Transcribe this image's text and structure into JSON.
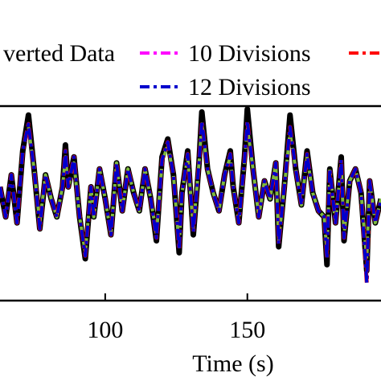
{
  "chart_data": {
    "type": "line",
    "xlabel": "Time (s)",
    "ylabel": "",
    "title": "",
    "xlim": [
      63,
      197
    ],
    "ylim": [
      -1.6,
      1.65
    ],
    "grid": false,
    "legend_placement": "top",
    "x_ticks": [
      {
        "value": 100,
        "label": "100"
      },
      {
        "value": 150,
        "label": "150"
      }
    ],
    "legend": [
      {
        "label": "verted Data",
        "color": "#000000",
        "dash": "solid"
      },
      {
        "label": "10 Divisions",
        "color": "#ff00ff",
        "dash": "dashdot"
      },
      {
        "label": "",
        "color": "#ff0000",
        "dash": "dashdot"
      },
      {
        "label": "12 Divisions",
        "color": "#0000cc",
        "dash": "dashdot"
      }
    ],
    "series": [
      {
        "color": "#000000",
        "style": "solid",
        "points": [
          [
            63,
            0.3
          ],
          [
            65,
            -0.2
          ],
          [
            67,
            0.5
          ],
          [
            69,
            -0.3
          ],
          [
            71,
            0.9
          ],
          [
            73,
            1.5
          ],
          [
            75,
            0.6
          ],
          [
            77,
            -0.4
          ],
          [
            79,
            0.5
          ],
          [
            81,
            0.1
          ],
          [
            83,
            -0.2
          ],
          [
            85,
            0.3
          ],
          [
            86,
            1.0
          ],
          [
            87,
            0.3
          ],
          [
            89,
            0.8
          ],
          [
            91,
            -0.2
          ],
          [
            93,
            -0.9
          ],
          [
            95,
            0.3
          ],
          [
            96,
            -0.2
          ],
          [
            98,
            0.6
          ],
          [
            100,
            0.1
          ],
          [
            102,
            -0.5
          ],
          [
            104,
            0.7
          ],
          [
            106,
            -0.1
          ],
          [
            108,
            0.6
          ],
          [
            110,
            0.2
          ],
          [
            112,
            -0.1
          ],
          [
            114,
            0.6
          ],
          [
            116,
            0.1
          ],
          [
            118,
            -0.6
          ],
          [
            120,
            0.8
          ],
          [
            122,
            1.1
          ],
          [
            124,
            0.5
          ],
          [
            126,
            -0.8
          ],
          [
            127,
            0.2
          ],
          [
            129,
            0.9
          ],
          [
            131,
            -0.5
          ],
          [
            133,
            0.7
          ],
          [
            134,
            1.55
          ],
          [
            136,
            0.6
          ],
          [
            138,
            0.2
          ],
          [
            140,
            -0.1
          ],
          [
            142,
            0.5
          ],
          [
            144,
            0.9
          ],
          [
            145,
            0.3
          ],
          [
            147,
            -0.3
          ],
          [
            149,
            0.8
          ],
          [
            150,
            1.6
          ],
          [
            152,
            0.6
          ],
          [
            154,
            -0.2
          ],
          [
            156,
            0.4
          ],
          [
            158,
            0.1
          ],
          [
            160,
            0.7
          ],
          [
            161,
            -0.7
          ],
          [
            163,
            0.3
          ],
          [
            165,
            1.5
          ],
          [
            167,
            0.6
          ],
          [
            169,
            0.0
          ],
          [
            171,
            0.9
          ],
          [
            173,
            0.2
          ],
          [
            175,
            -0.1
          ],
          [
            177,
            -0.2
          ],
          [
            178,
            -1.0
          ],
          [
            179,
            0.6
          ],
          [
            181,
            -0.3
          ],
          [
            183,
            0.8
          ],
          [
            184,
            -0.6
          ],
          [
            186,
            0.4
          ],
          [
            188,
            0.6
          ],
          [
            190,
            0.2
          ],
          [
            192,
            -1.1
          ],
          [
            193,
            0.4
          ],
          [
            195,
            -0.3
          ],
          [
            197,
            0.1
          ]
        ]
      },
      {
        "color": "#7dba3e",
        "style": "dashdot",
        "points": [
          [
            63,
            0.3
          ],
          [
            65,
            -0.2
          ],
          [
            67,
            0.5
          ],
          [
            69,
            -0.3
          ],
          [
            71,
            0.9
          ],
          [
            73,
            1.3
          ],
          [
            75,
            0.6
          ],
          [
            77,
            -0.3
          ],
          [
            79,
            0.5
          ],
          [
            81,
            0.1
          ],
          [
            83,
            -0.2
          ],
          [
            85,
            0.3
          ],
          [
            86,
            0.8
          ],
          [
            87,
            0.3
          ],
          [
            89,
            0.7
          ],
          [
            91,
            -0.2
          ],
          [
            93,
            -0.8
          ],
          [
            95,
            0.3
          ],
          [
            96,
            -0.2
          ],
          [
            98,
            0.6
          ],
          [
            100,
            0.1
          ],
          [
            102,
            -0.5
          ],
          [
            104,
            0.7
          ],
          [
            106,
            -0.1
          ],
          [
            108,
            0.6
          ],
          [
            110,
            0.2
          ],
          [
            112,
            -0.1
          ],
          [
            114,
            0.6
          ],
          [
            116,
            0.1
          ],
          [
            118,
            -0.5
          ],
          [
            120,
            0.7
          ],
          [
            122,
            1.0
          ],
          [
            124,
            0.5
          ],
          [
            126,
            -0.7
          ],
          [
            127,
            0.2
          ],
          [
            129,
            0.8
          ],
          [
            131,
            -0.4
          ],
          [
            133,
            0.7
          ],
          [
            134,
            1.35
          ],
          [
            136,
            0.6
          ],
          [
            138,
            0.2
          ],
          [
            140,
            -0.1
          ],
          [
            142,
            0.5
          ],
          [
            144,
            0.8
          ],
          [
            145,
            0.3
          ],
          [
            147,
            -0.3
          ],
          [
            149,
            0.7
          ],
          [
            150,
            1.3
          ],
          [
            152,
            0.6
          ],
          [
            154,
            -0.2
          ],
          [
            156,
            0.4
          ],
          [
            158,
            0.1
          ],
          [
            160,
            0.7
          ],
          [
            161,
            -0.6
          ],
          [
            163,
            0.3
          ],
          [
            165,
            1.2
          ],
          [
            167,
            0.6
          ],
          [
            169,
            0.0
          ],
          [
            171,
            0.8
          ],
          [
            173,
            0.2
          ],
          [
            175,
            -0.1
          ],
          [
            177,
            -0.2
          ],
          [
            178,
            -0.8
          ],
          [
            179,
            0.6
          ],
          [
            181,
            -0.3
          ],
          [
            183,
            0.7
          ],
          [
            184,
            -0.5
          ],
          [
            186,
            0.4
          ],
          [
            188,
            0.6
          ],
          [
            190,
            0.2
          ],
          [
            192,
            -0.9
          ],
          [
            193,
            0.4
          ],
          [
            195,
            -0.3
          ],
          [
            197,
            0.1
          ]
        ]
      },
      {
        "color": "#ff0000",
        "style": "dashdot",
        "points": [
          [
            63,
            0.3
          ],
          [
            65,
            -0.2
          ],
          [
            67,
            0.5
          ],
          [
            69,
            -0.3
          ],
          [
            71,
            0.9
          ],
          [
            73,
            1.35
          ],
          [
            75,
            0.6
          ],
          [
            77,
            -0.4
          ],
          [
            79,
            0.5
          ],
          [
            81,
            0.1
          ],
          [
            83,
            -0.2
          ],
          [
            85,
            0.3
          ],
          [
            86,
            0.9
          ],
          [
            87,
            0.3
          ],
          [
            89,
            0.8
          ],
          [
            91,
            -0.2
          ],
          [
            93,
            -0.85
          ],
          [
            95,
            0.3
          ],
          [
            96,
            -0.2
          ],
          [
            98,
            0.6
          ],
          [
            100,
            0.1
          ],
          [
            102,
            -0.5
          ],
          [
            104,
            0.7
          ],
          [
            106,
            -0.1
          ],
          [
            108,
            0.6
          ],
          [
            110,
            0.2
          ],
          [
            112,
            -0.1
          ],
          [
            114,
            0.6
          ],
          [
            116,
            0.1
          ],
          [
            118,
            -0.55
          ],
          [
            120,
            0.75
          ],
          [
            122,
            1.05
          ],
          [
            124,
            0.5
          ],
          [
            126,
            -0.75
          ],
          [
            127,
            0.2
          ],
          [
            129,
            0.85
          ],
          [
            131,
            -0.45
          ],
          [
            133,
            0.7
          ],
          [
            134,
            1.4
          ],
          [
            136,
            0.6
          ],
          [
            138,
            0.2
          ],
          [
            140,
            -0.1
          ],
          [
            142,
            0.5
          ],
          [
            144,
            0.85
          ],
          [
            145,
            0.3
          ],
          [
            147,
            -0.3
          ],
          [
            149,
            0.75
          ],
          [
            150,
            1.4
          ],
          [
            152,
            0.6
          ],
          [
            154,
            -0.2
          ],
          [
            156,
            0.4
          ],
          [
            158,
            0.1
          ],
          [
            160,
            0.7
          ],
          [
            161,
            -0.65
          ],
          [
            163,
            0.3
          ],
          [
            165,
            1.3
          ],
          [
            167,
            0.6
          ],
          [
            169,
            0.0
          ],
          [
            171,
            0.85
          ],
          [
            173,
            0.2
          ],
          [
            175,
            -0.1
          ],
          [
            177,
            -0.2
          ],
          [
            178,
            -0.9
          ],
          [
            179,
            0.6
          ],
          [
            181,
            -0.3
          ],
          [
            183,
            0.75
          ],
          [
            184,
            -0.55
          ],
          [
            186,
            0.4
          ],
          [
            188,
            0.6
          ],
          [
            190,
            0.2
          ],
          [
            192,
            -1.3
          ],
          [
            193,
            0.4
          ],
          [
            195,
            -0.3
          ],
          [
            197,
            0.1
          ]
        ]
      },
      {
        "color": "#0000cc",
        "style": "dashdot",
        "points": [
          [
            63,
            0.3
          ],
          [
            65,
            -0.2
          ],
          [
            67,
            0.5
          ],
          [
            69,
            -0.3
          ],
          [
            71,
            0.9
          ],
          [
            73,
            1.35
          ],
          [
            75,
            0.6
          ],
          [
            77,
            -0.4
          ],
          [
            79,
            0.5
          ],
          [
            81,
            0.1
          ],
          [
            83,
            -0.2
          ],
          [
            85,
            0.3
          ],
          [
            86,
            0.9
          ],
          [
            87,
            0.3
          ],
          [
            89,
            0.8
          ],
          [
            91,
            -0.2
          ],
          [
            93,
            -0.85
          ],
          [
            95,
            0.3
          ],
          [
            96,
            -0.2
          ],
          [
            98,
            0.6
          ],
          [
            100,
            0.1
          ],
          [
            102,
            -0.5
          ],
          [
            104,
            0.7
          ],
          [
            106,
            -0.1
          ],
          [
            108,
            0.6
          ],
          [
            110,
            0.2
          ],
          [
            112,
            -0.1
          ],
          [
            114,
            0.6
          ],
          [
            116,
            0.1
          ],
          [
            118,
            -0.55
          ],
          [
            120,
            0.75
          ],
          [
            122,
            1.05
          ],
          [
            124,
            0.5
          ],
          [
            126,
            -0.75
          ],
          [
            127,
            0.2
          ],
          [
            129,
            0.85
          ],
          [
            131,
            -0.45
          ],
          [
            133,
            0.7
          ],
          [
            134,
            1.4
          ],
          [
            136,
            0.6
          ],
          [
            138,
            0.2
          ],
          [
            140,
            -0.1
          ],
          [
            142,
            0.5
          ],
          [
            144,
            0.85
          ],
          [
            145,
            0.3
          ],
          [
            147,
            -0.3
          ],
          [
            149,
            0.75
          ],
          [
            150,
            1.4
          ],
          [
            152,
            0.6
          ],
          [
            154,
            -0.2
          ],
          [
            156,
            0.4
          ],
          [
            158,
            0.1
          ],
          [
            160,
            0.7
          ],
          [
            161,
            -0.65
          ],
          [
            163,
            0.3
          ],
          [
            165,
            1.3
          ],
          [
            167,
            0.6
          ],
          [
            169,
            0.0
          ],
          [
            171,
            0.85
          ],
          [
            173,
            0.2
          ],
          [
            175,
            -0.1
          ],
          [
            177,
            -0.2
          ],
          [
            178,
            -0.9
          ],
          [
            179,
            0.6
          ],
          [
            181,
            -0.3
          ],
          [
            183,
            0.75
          ],
          [
            184,
            -0.55
          ],
          [
            186,
            0.4
          ],
          [
            188,
            0.6
          ],
          [
            190,
            0.2
          ],
          [
            192,
            -1.3
          ],
          [
            193,
            0.4
          ],
          [
            195,
            -0.3
          ],
          [
            197,
            0.1
          ]
        ]
      }
    ]
  }
}
